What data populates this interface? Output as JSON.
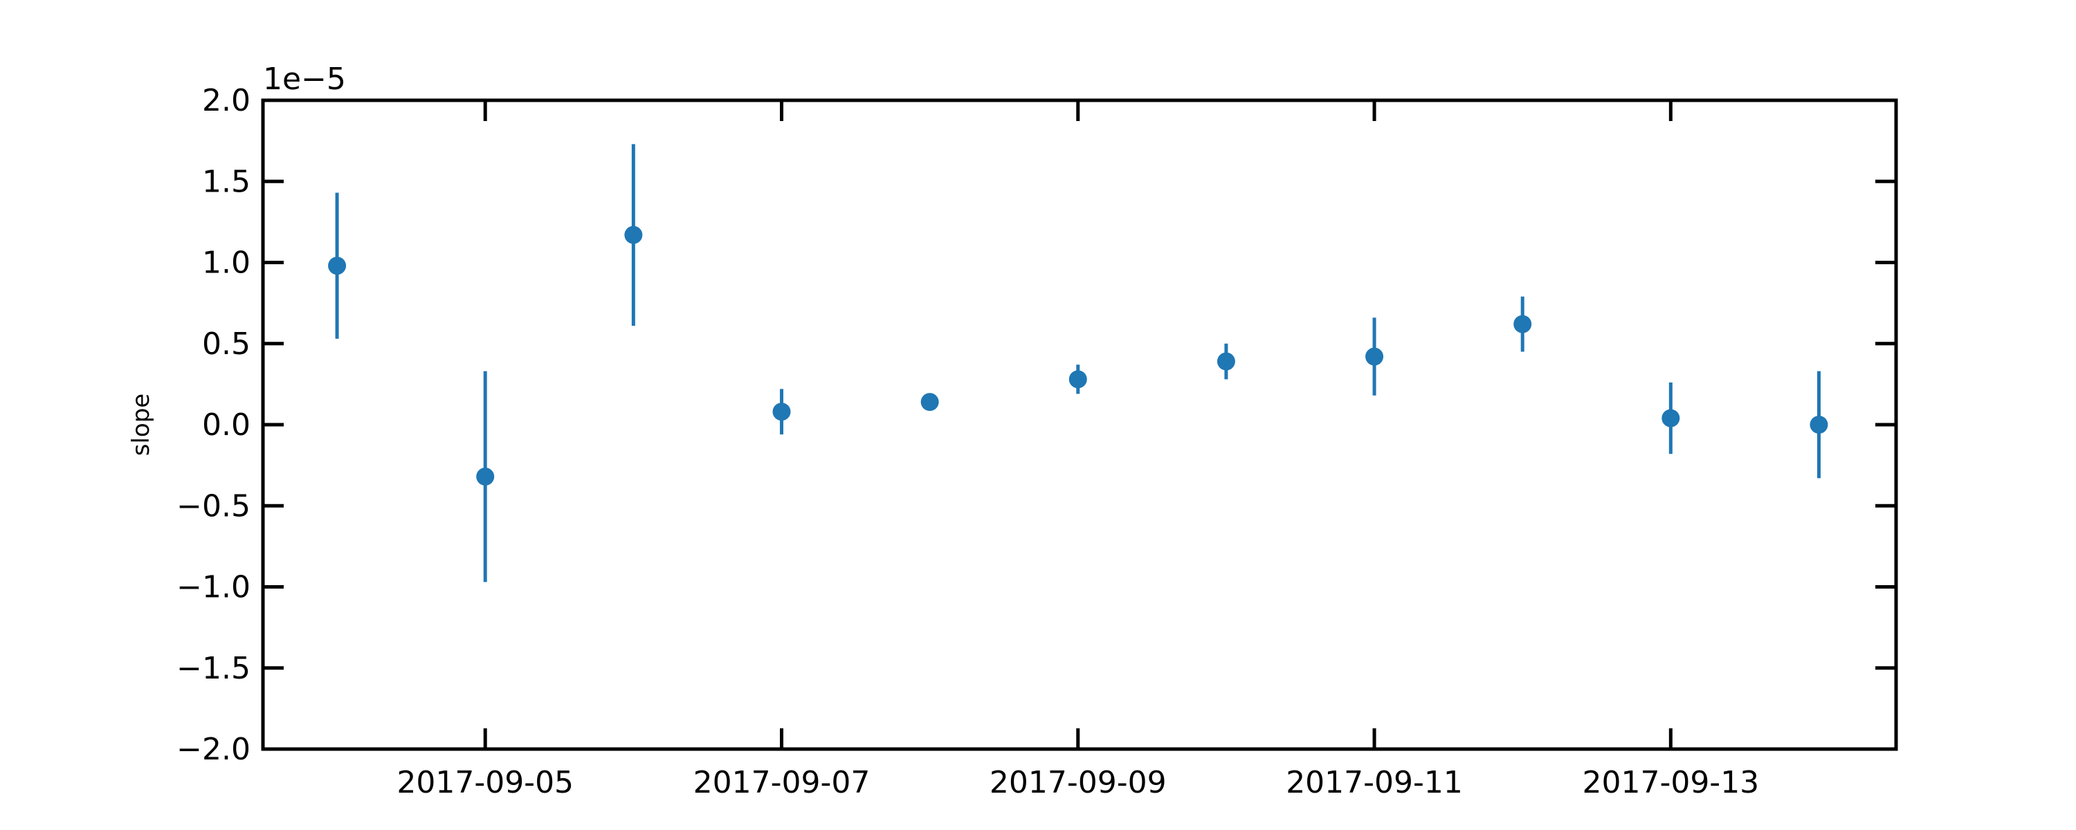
{
  "chart_data": {
    "type": "scatter",
    "title": "",
    "xlabel": "",
    "ylabel": "slope",
    "y_offset_label": "1e−5",
    "y_scale_factor": 1e-05,
    "x_axis_type": "date",
    "xlim": [
      "2017-09-03T12:00",
      "2017-09-14T12:30"
    ],
    "ylim": [
      -2e-05,
      2e-05
    ],
    "x_ticks": [
      "2017-09-05",
      "2017-09-07",
      "2017-09-09",
      "2017-09-11",
      "2017-09-13"
    ],
    "y_ticks": [
      -2e-05,
      -1.5e-05,
      -1e-05,
      -5e-06,
      0.0,
      5e-06,
      1e-05,
      1.5e-05,
      2e-05
    ],
    "y_tick_labels": [
      "−2.0",
      "−1.5",
      "−1.0",
      "−0.5",
      "0.0",
      "0.5",
      "1.0",
      "1.5",
      "2.0"
    ],
    "grid": false,
    "legend": "none",
    "marker_color": "#1f77b4",
    "points": [
      {
        "x": "2017-09-04",
        "y": 9.8e-06,
        "yerr": 4.5e-06
      },
      {
        "x": "2017-09-05",
        "y": -3.2e-06,
        "yerr": 6.5e-06
      },
      {
        "x": "2017-09-06",
        "y": 1.17e-05,
        "yerr": 5.6e-06
      },
      {
        "x": "2017-09-07",
        "y": 8e-07,
        "yerr": 1.4e-06
      },
      {
        "x": "2017-09-08",
        "y": 1.4e-06,
        "yerr": 0.0
      },
      {
        "x": "2017-09-09",
        "y": 2.8e-06,
        "yerr": 9e-07
      },
      {
        "x": "2017-09-10",
        "y": 3.9e-06,
        "yerr": 1.1e-06
      },
      {
        "x": "2017-09-11",
        "y": 4.2e-06,
        "yerr": 2.4e-06
      },
      {
        "x": "2017-09-12",
        "y": 6.2e-06,
        "yerr": 1.7e-06
      },
      {
        "x": "2017-09-13",
        "y": 4e-07,
        "yerr": 2.2e-06
      },
      {
        "x": "2017-09-14",
        "y": 0.0,
        "yerr": 3.3e-06
      }
    ]
  }
}
